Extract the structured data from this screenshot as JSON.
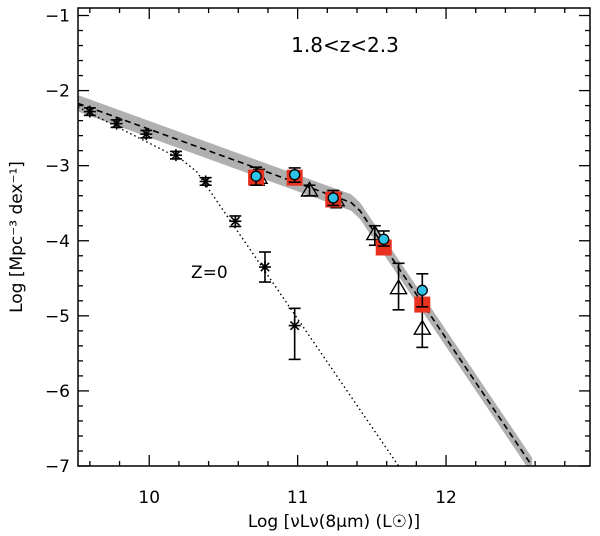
{
  "chart_data": {
    "type": "scatter",
    "title": "",
    "annotations": {
      "redshift_range": "1.8<z<2.3",
      "local_label": "Z=0"
    },
    "xlabel": "Log [νLν(8μm) (L☉)]",
    "ylabel": "Log [Mpc⁻³ dex⁻¹]",
    "xlim": [
      9.52,
      12.97
    ],
    "ylim": [
      -7,
      -0.9
    ],
    "xticks": [
      10,
      11,
      12
    ],
    "xtick_labels": [
      "10",
      "11",
      "12"
    ],
    "yticks": [
      -7,
      -6,
      -5,
      -4,
      -3,
      -2,
      -1
    ],
    "ytick_labels": [
      "−7",
      "−6",
      "−5",
      "−4",
      "−3",
      "−2",
      "−1"
    ],
    "series": [
      {
        "name": "z=0 (asterisks)",
        "marker": "asterisk",
        "points": [
          {
            "x": 9.6,
            "y": -2.28,
            "lo": -2.33,
            "hi": -2.23
          },
          {
            "x": 9.78,
            "y": -2.44,
            "lo": -2.49,
            "hi": -2.39
          },
          {
            "x": 9.98,
            "y": -2.58,
            "lo": -2.63,
            "hi": -2.53
          },
          {
            "x": 10.18,
            "y": -2.86,
            "lo": -2.91,
            "hi": -2.81
          },
          {
            "x": 10.38,
            "y": -3.21,
            "lo": -3.26,
            "hi": -3.16
          },
          {
            "x": 10.58,
            "y": -3.74,
            "lo": -3.81,
            "hi": -3.67
          },
          {
            "x": 10.78,
            "y": -4.35,
            "lo": -4.55,
            "hi": -4.15
          },
          {
            "x": 10.98,
            "y": -5.13,
            "lo": -5.58,
            "hi": -4.9
          }
        ]
      },
      {
        "name": "triangles",
        "marker": "triangle",
        "points": [
          {
            "x": 10.74,
            "y": -3.16,
            "lo": -3.26,
            "hi": -3.05
          },
          {
            "x": 11.08,
            "y": -3.33,
            "lo": -3.4,
            "hi": -3.26
          },
          {
            "x": 11.26,
            "y": -3.46,
            "lo": -3.56,
            "hi": -3.37
          },
          {
            "x": 11.52,
            "y": -3.91,
            "lo": -4.06,
            "hi": -3.8
          },
          {
            "x": 11.68,
            "y": -4.63,
            "lo": -4.92,
            "hi": -4.3
          },
          {
            "x": 11.84,
            "y": -5.17,
            "lo": -5.42,
            "hi": -4.88
          }
        ]
      },
      {
        "name": "red squares",
        "marker": "square",
        "color": "#e8311e",
        "points": [
          {
            "x": 10.72,
            "y": -3.16
          },
          {
            "x": 10.98,
            "y": -3.16
          },
          {
            "x": 11.24,
            "y": -3.45
          },
          {
            "x": 11.58,
            "y": -4.09
          },
          {
            "x": 11.84,
            "y": -4.85
          }
        ]
      },
      {
        "name": "cyan circles",
        "marker": "circle",
        "color": "#2ec3e6",
        "points": [
          {
            "x": 10.72,
            "y": -3.14,
            "lo": -3.26,
            "hi": -3.02
          },
          {
            "x": 10.98,
            "y": -3.12,
            "lo": -3.22,
            "hi": -3.03
          },
          {
            "x": 11.24,
            "y": -3.43,
            "lo": -3.53,
            "hi": -3.33
          },
          {
            "x": 11.58,
            "y": -3.98,
            "lo": -4.07,
            "hi": -3.87
          },
          {
            "x": 11.84,
            "y": -4.66,
            "lo": -4.88,
            "hi": -4.44
          }
        ]
      }
    ],
    "model_fit": {
      "name": "dashed fit",
      "points": [
        [
          9.52,
          -2.17
        ],
        [
          11.36,
          -3.49
        ],
        [
          11.42,
          -3.6
        ],
        [
          12.58,
          -7.0
        ]
      ],
      "band_half_width": 0.11,
      "band_color": "#b0b0b0"
    },
    "local_fit": {
      "name": "dotted z=0 fit",
      "points": [
        [
          9.52,
          -2.22
        ],
        [
          10.22,
          -2.92
        ],
        [
          10.32,
          -3.08
        ],
        [
          11.68,
          -7.0
        ]
      ]
    }
  }
}
